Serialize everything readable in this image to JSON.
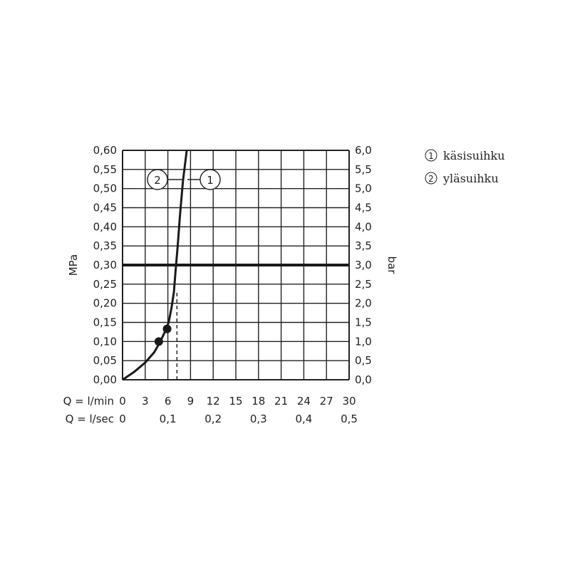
{
  "chart_data": {
    "type": "line",
    "xlabel": "Q = l/min",
    "xlabel_secondary": "Q = l/sec",
    "ylabel_left": "MPa",
    "ylabel_right": "bar",
    "xlim": [
      0,
      30
    ],
    "ylim": [
      0,
      0.6
    ],
    "grid": true,
    "x_ticks": [
      "0",
      "3",
      "6",
      "9",
      "12",
      "15",
      "18",
      "21",
      "24",
      "27",
      "30"
    ],
    "x_ticks_secondary": [
      "0",
      "0,1",
      "0,2",
      "0,3",
      "0,4",
      "0,5"
    ],
    "y_ticks_left": [
      "0,00",
      "0,05",
      "0,10",
      "0,15",
      "0,20",
      "0,25",
      "0,30",
      "0,35",
      "0,40",
      "0,45",
      "0,50",
      "0,55",
      "0,60"
    ],
    "y_ticks_right": [
      "0,0",
      "0,5",
      "1,0",
      "1,5",
      "2,0",
      "2,5",
      "3,0",
      "3,5",
      "4,0",
      "4,5",
      "5,0",
      "5,5",
      "6,0"
    ],
    "reference_line": {
      "y": 0.3
    },
    "dashed_line": {
      "x": 7.2,
      "y_from": 0,
      "y_to": 0.23
    },
    "series": [
      {
        "x": [
          0,
          1.5,
          3,
          4.2,
          5.0,
          5.6,
          6.1,
          6.5,
          6.8,
          7.0,
          7.3,
          7.6,
          8.0,
          8.5
        ],
        "y": [
          0,
          0.02,
          0.045,
          0.072,
          0.1,
          0.125,
          0.15,
          0.19,
          0.23,
          0.28,
          0.35,
          0.43,
          0.52,
          0.6
        ]
      }
    ],
    "points": [
      {
        "marker": "2",
        "x": 4.8,
        "y": 0.1
      },
      {
        "marker": "1",
        "x": 5.9,
        "y": 0.133
      }
    ],
    "curve_markers": [
      "2",
      "1"
    ],
    "legend": [
      {
        "symbol": "1",
        "label": "käsisuihku"
      },
      {
        "symbol": "2",
        "label": "yläsuihku"
      }
    ],
    "legend_position": "top-right"
  },
  "colors": {
    "line": "#1a1a1a",
    "grid": "#222222",
    "background": "#ffffff"
  }
}
